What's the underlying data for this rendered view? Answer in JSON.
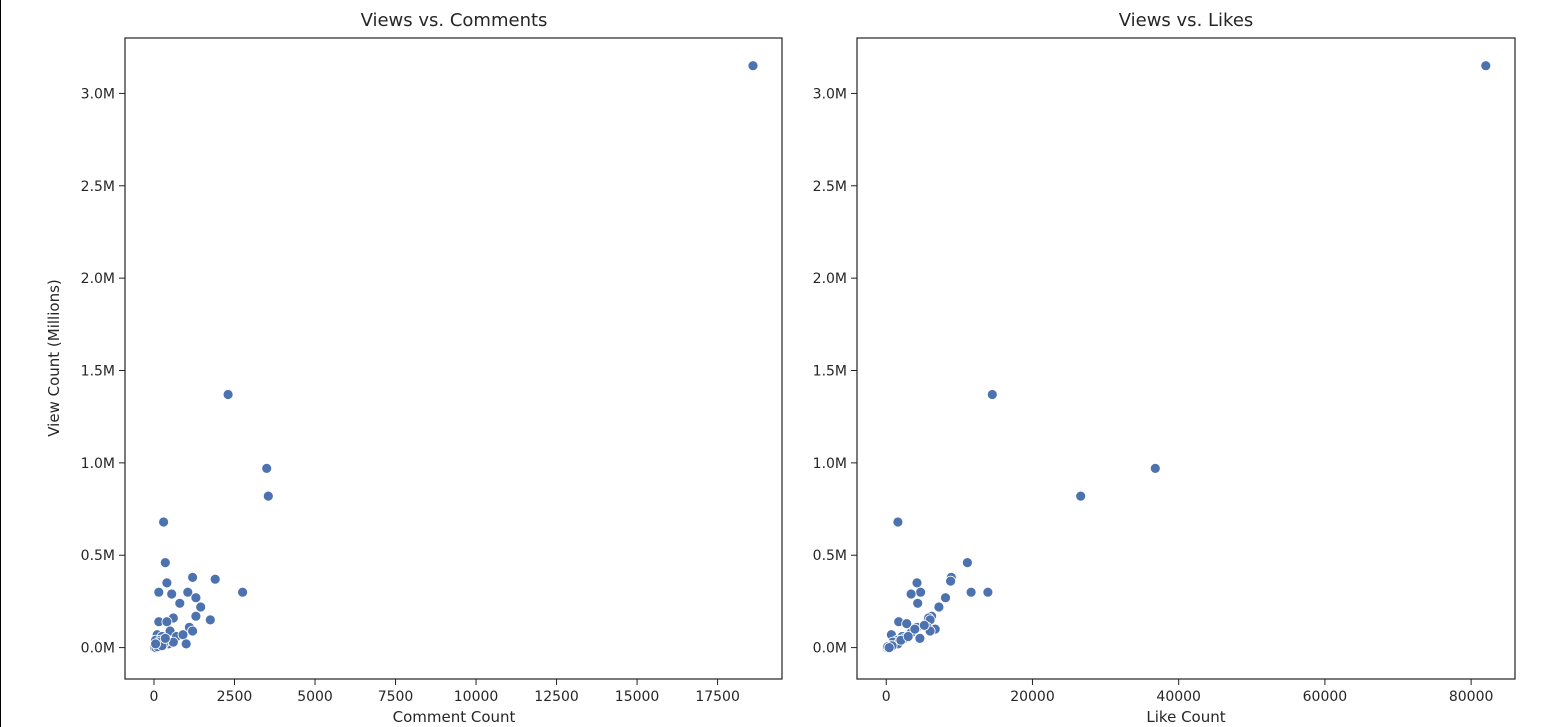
{
  "chart_data": [
    {
      "type": "scatter",
      "title": "Views vs. Comments",
      "xlabel": "Comment Count",
      "ylabel": "View Count (Millions)",
      "xlim": [
        -900,
        19500
      ],
      "ylim": [
        -0.17,
        3.3
      ],
      "xticks": [
        0,
        2500,
        5000,
        7500,
        10000,
        12500,
        15000,
        17500
      ],
      "xtick_labels": [
        "0",
        "2500",
        "5000",
        "7500",
        "10000",
        "12500",
        "15000",
        "17500"
      ],
      "yticks": [
        0.0,
        0.5,
        1.0,
        1.5,
        2.0,
        2.5,
        3.0
      ],
      "ytick_labels": [
        "0.0M",
        "0.5M",
        "1.0M",
        "1.5M",
        "2.0M",
        "2.5M",
        "3.0M"
      ],
      "color": "#4C72B0",
      "points": [
        [
          18600,
          3.15
        ],
        [
          2300,
          1.37
        ],
        [
          3500,
          0.97
        ],
        [
          3550,
          0.82
        ],
        [
          300,
          0.68
        ],
        [
          350,
          0.46
        ],
        [
          1200,
          0.38
        ],
        [
          1900,
          0.37
        ],
        [
          400,
          0.35
        ],
        [
          150,
          0.3
        ],
        [
          550,
          0.29
        ],
        [
          1050,
          0.3
        ],
        [
          2750,
          0.3
        ],
        [
          1300,
          0.27
        ],
        [
          800,
          0.24
        ],
        [
          1450,
          0.22
        ],
        [
          1300,
          0.17
        ],
        [
          600,
          0.16
        ],
        [
          1750,
          0.15
        ],
        [
          150,
          0.14
        ],
        [
          400,
          0.14
        ],
        [
          1100,
          0.11
        ],
        [
          1200,
          0.09
        ],
        [
          500,
          0.09
        ],
        [
          100,
          0.07
        ],
        [
          250,
          0.06
        ],
        [
          700,
          0.06
        ],
        [
          900,
          0.07
        ],
        [
          50,
          0.04
        ],
        [
          200,
          0.04
        ],
        [
          450,
          0.02
        ],
        [
          1000,
          0.02
        ],
        [
          600,
          0.03
        ],
        [
          300,
          0.02
        ],
        [
          100,
          0.01
        ],
        [
          30,
          0.005
        ],
        [
          80,
          0.01
        ],
        [
          150,
          0.02
        ],
        [
          20,
          0.0
        ],
        [
          60,
          0.0
        ],
        [
          120,
          0.005
        ],
        [
          200,
          0.03
        ],
        [
          250,
          0.01
        ],
        [
          350,
          0.05
        ],
        [
          50,
          0.02
        ]
      ]
    },
    {
      "type": "scatter",
      "title": "Views vs. Likes",
      "xlabel": "Like Count",
      "ylabel": "",
      "xlim": [
        -4000,
        86000
      ],
      "ylim": [
        -0.17,
        3.3
      ],
      "xticks": [
        0,
        20000,
        40000,
        60000,
        80000
      ],
      "xtick_labels": [
        "0",
        "20000",
        "40000",
        "60000",
        "80000"
      ],
      "yticks": [
        0.0,
        0.5,
        1.0,
        1.5,
        2.0,
        2.5,
        3.0
      ],
      "ytick_labels": [
        "0.0M",
        "0.5M",
        "1.0M",
        "1.5M",
        "2.0M",
        "2.5M",
        "3.0M"
      ],
      "color": "#4C72B0",
      "points": [
        [
          82000,
          3.15
        ],
        [
          14500,
          1.37
        ],
        [
          36800,
          0.97
        ],
        [
          26600,
          0.82
        ],
        [
          1600,
          0.68
        ],
        [
          11100,
          0.46
        ],
        [
          8900,
          0.38
        ],
        [
          8800,
          0.36
        ],
        [
          4200,
          0.35
        ],
        [
          4700,
          0.3
        ],
        [
          3400,
          0.29
        ],
        [
          11600,
          0.3
        ],
        [
          13900,
          0.3
        ],
        [
          8100,
          0.27
        ],
        [
          4300,
          0.24
        ],
        [
          7200,
          0.22
        ],
        [
          6200,
          0.17
        ],
        [
          5800,
          0.16
        ],
        [
          6000,
          0.15
        ],
        [
          1700,
          0.14
        ],
        [
          2800,
          0.13
        ],
        [
          4200,
          0.11
        ],
        [
          5600,
          0.11
        ],
        [
          6700,
          0.1
        ],
        [
          3400,
          0.08
        ],
        [
          6000,
          0.09
        ],
        [
          700,
          0.07
        ],
        [
          2200,
          0.06
        ],
        [
          4600,
          0.05
        ],
        [
          1500,
          0.04
        ],
        [
          2500,
          0.05
        ],
        [
          1200,
          0.03
        ],
        [
          3900,
          0.1
        ],
        [
          600,
          0.02
        ],
        [
          900,
          0.03
        ],
        [
          300,
          0.01
        ],
        [
          100,
          0.0
        ],
        [
          500,
          0.01
        ],
        [
          200,
          0.005
        ],
        [
          1600,
          0.02
        ],
        [
          2000,
          0.04
        ],
        [
          800,
          0.01
        ],
        [
          3000,
          0.06
        ],
        [
          5200,
          0.12
        ],
        [
          400,
          0.0
        ]
      ]
    }
  ]
}
